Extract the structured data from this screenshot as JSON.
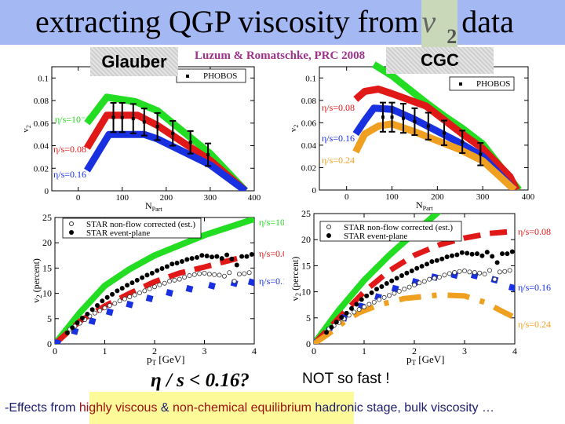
{
  "title": {
    "text": "extracting QGP viscosity from",
    "v": "v",
    "sub": "2",
    "tail": "data"
  },
  "tags": {
    "glauber": "Glauber",
    "cgc": "CGC"
  },
  "citation": "Luzum & Romatschke, PRC 2008",
  "claim": "η / s < 0.16?",
  "rebuttal": "NOT so fast !",
  "footnote": {
    "prefix": "-Effects from ",
    "r1": "highly viscous",
    "mid": " & ",
    "r2": "non-chemical equilibrium",
    "suffix": " hadronic stage, bulk viscosity …"
  },
  "colors": {
    "titlebar": "#a4b8f4",
    "green": "#22dd22",
    "red": "#e01818",
    "blue": "#1830e0",
    "orange": "#f0a020",
    "citation": "#a0308a"
  },
  "chart_data": [
    {
      "type": "line",
      "panel": "Glauber",
      "xlabel": {
        "main": "N",
        "sub": "Part"
      },
      "ylabel": {
        "main": "v",
        "sub": "2"
      },
      "xlim": [
        -60,
        400
      ],
      "ylim": [
        0,
        0.11
      ],
      "xticks": [
        "0",
        "100",
        "200",
        "300",
        "400"
      ],
      "yticks": [
        "0",
        "0.02",
        "0.04",
        "0.06",
        "0.08",
        "0.1"
      ],
      "legend": [
        "PHOBOS"
      ],
      "series": [
        {
          "name": "η/s=10⁻⁴",
          "color": "#22dd22",
          "style": "band",
          "points": [
            [
              20,
              0.06
            ],
            [
              65,
              0.083
            ],
            [
              130,
              0.079
            ],
            [
              180,
              0.071
            ],
            [
              300,
              0.033
            ],
            [
              380,
              0
            ]
          ]
        },
        {
          "name": "η/s=0.08",
          "color": "#e01818",
          "style": "band",
          "points": [
            [
              20,
              0.038
            ],
            [
              65,
              0.067
            ],
            [
              135,
              0.067
            ],
            [
              180,
              0.058
            ],
            [
              300,
              0.027
            ],
            [
              380,
              0
            ]
          ]
        },
        {
          "name": "η/s=0.16",
          "color": "#1830e0",
          "style": "band",
          "points": [
            [
              20,
              0.018
            ],
            [
              70,
              0.05
            ],
            [
              150,
              0.05
            ],
            [
              180,
              0.046
            ],
            [
              300,
              0.023
            ],
            [
              380,
              0
            ]
          ]
        }
      ],
      "data": {
        "name": "PHOBOS",
        "points": [
          [
            80,
            0.065,
            0.013
          ],
          [
            100,
            0.065,
            0.013
          ],
          [
            125,
            0.064,
            0.013
          ],
          [
            150,
            0.061,
            0.012
          ],
          [
            180,
            0.057,
            0.012
          ],
          [
            215,
            0.051,
            0.011
          ],
          [
            255,
            0.043,
            0.01
          ],
          [
            295,
            0.032,
            0.01
          ]
        ]
      }
    },
    {
      "type": "line",
      "panel": "CGC",
      "xlabel": {
        "main": "N",
        "sub": "Part"
      },
      "ylabel": {
        "main": "v",
        "sub": "2"
      },
      "xlim": [
        -60,
        400
      ],
      "ylim": [
        0,
        0.11
      ],
      "xticks": [
        "0",
        "100",
        "200",
        "300",
        "400"
      ],
      "yticks": [
        "0",
        "0.02",
        "0.04",
        "0.06",
        "0.08",
        "0.1"
      ],
      "legend": [
        "PHOBOS"
      ],
      "series": [
        {
          "color": "#22dd22",
          "style": "band",
          "points": [
            [
              60,
              0.112
            ],
            [
              100,
              0.102
            ],
            [
              175,
              0.078
            ],
            [
              215,
              0.066
            ],
            [
              255,
              0.055
            ],
            [
              300,
              0.041
            ],
            [
              380,
              0
            ]
          ]
        },
        {
          "name": "η/s=0.08",
          "color": "#e01818",
          "style": "band",
          "points": [
            [
              20,
              0.081
            ],
            [
              40,
              0.088
            ],
            [
              70,
              0.09
            ],
            [
              100,
              0.086
            ],
            [
              175,
              0.075
            ],
            [
              255,
              0.05
            ],
            [
              300,
              0.037
            ],
            [
              360,
              0.012
            ],
            [
              375,
              0
            ]
          ]
        },
        {
          "name": "η/s=0.16",
          "color": "#1830e0",
          "style": "band",
          "points": [
            [
              20,
              0.05
            ],
            [
              40,
              0.062
            ],
            [
              60,
              0.073
            ],
            [
              100,
              0.072
            ],
            [
              150,
              0.063
            ],
            [
              250,
              0.042
            ],
            [
              300,
              0.03
            ],
            [
              370,
              0
            ]
          ]
        },
        {
          "name": "η/s=0.24",
          "color": "#f0a020",
          "style": "band",
          "points": [
            [
              20,
              0.034
            ],
            [
              40,
              0.05
            ],
            [
              70,
              0.057
            ],
            [
              100,
              0.059
            ],
            [
              150,
              0.052
            ],
            [
              250,
              0.036
            ],
            [
              300,
              0.026
            ],
            [
              370,
              0
            ]
          ]
        }
      ],
      "data": {
        "name": "PHOBOS",
        "points": [
          [
            80,
            0.065,
            0.013
          ],
          [
            100,
            0.065,
            0.013
          ],
          [
            125,
            0.064,
            0.013
          ],
          [
            150,
            0.061,
            0.012
          ],
          [
            180,
            0.057,
            0.012
          ],
          [
            215,
            0.051,
            0.011
          ],
          [
            255,
            0.043,
            0.01
          ],
          [
            295,
            0.032,
            0.01
          ]
        ]
      }
    },
    {
      "type": "line",
      "panel": "Glauber",
      "xlabel": {
        "main": "p",
        "sub": "T",
        "suffix": " [GeV]"
      },
      "ylabel": {
        "main": "v",
        "sub": "2",
        "suffix": " (percent)"
      },
      "xlim": [
        0,
        4
      ],
      "ylim": [
        0,
        25
      ],
      "xticks": [
        "0",
        "1",
        "2",
        "3",
        "4"
      ],
      "yticks": [
        "0",
        "5",
        "10",
        "15",
        "20",
        "25"
      ],
      "legend": [
        "STAR non-flow corrected (est.)",
        "STAR event-plane"
      ],
      "series": [
        {
          "name": "η/s=10⁻⁴",
          "color": "#22dd22",
          "style": "band",
          "points": [
            [
              0,
              0
            ],
            [
              0.5,
              6.2
            ],
            [
              1,
              11.5
            ],
            [
              1.5,
              14.8
            ],
            [
              2,
              17.5
            ],
            [
              3,
              21.5
            ],
            [
              4,
              24.7
            ]
          ]
        },
        {
          "name": "η/s=0.08",
          "color": "#e01818",
          "style": "dashed",
          "points": [
            [
              0,
              0
            ],
            [
              0.5,
              4.5
            ],
            [
              1,
              7.5
            ],
            [
              1.5,
              10
            ],
            [
              2,
              12.3
            ],
            [
              2.5,
              14
            ],
            [
              3,
              15.2
            ],
            [
              3.5,
              16.5
            ],
            [
              3.7,
              17
            ]
          ]
        },
        {
          "name": "η/s=0.16",
          "color": "#1830e0",
          "style": "markers",
          "points": [
            [
              0.05,
              0.2
            ],
            [
              0.4,
              2.5
            ],
            [
              0.75,
              4.5
            ],
            [
              1.1,
              6.3
            ],
            [
              1.5,
              7.8
            ],
            [
              1.9,
              9
            ],
            [
              2.3,
              10.1
            ],
            [
              2.7,
              10.9
            ],
            [
              3.15,
              11.5
            ],
            [
              3.6,
              12
            ],
            [
              3.95,
              12.2
            ]
          ]
        }
      ]
    },
    {
      "type": "line",
      "panel": "CGC",
      "xlabel": {
        "main": "p",
        "sub": "T",
        "suffix": " [GeV]"
      },
      "ylabel": {
        "main": "v",
        "sub": "2",
        "suffix": " (percent)"
      },
      "xlim": [
        0,
        4
      ],
      "ylim": [
        0,
        25
      ],
      "xticks": [
        "0",
        "1",
        "2",
        "3",
        "4"
      ],
      "yticks": [
        "0",
        "5",
        "10",
        "15",
        "20",
        "25"
      ],
      "legend": [
        "STAR non-flow corrected (est.)",
        "STAR event-plane"
      ],
      "series": [
        {
          "color": "#22dd22",
          "style": "band",
          "points": [
            [
              0,
              0
            ],
            [
              0.5,
              6.5
            ],
            [
              1,
              12.2
            ],
            [
              1.5,
              17
            ],
            [
              2,
              21.3
            ],
            [
              2.5,
              25.5
            ]
          ]
        },
        {
          "name": "η/s=0.08",
          "color": "#e01818",
          "style": "dashed",
          "points": [
            [
              0,
              0
            ],
            [
              0.5,
              5
            ],
            [
              1,
              10
            ],
            [
              1.5,
              14
            ],
            [
              2,
              17
            ],
            [
              2.5,
              19
            ],
            [
              3,
              20.3
            ],
            [
              3.5,
              21.2
            ],
            [
              4,
              21.6
            ]
          ]
        },
        {
          "name": "η/s=0.16",
          "color": "#1830e0",
          "style": "markers",
          "points": [
            [
              0.05,
              0.2
            ],
            [
              0.3,
              2.5
            ],
            [
              0.6,
              5
            ],
            [
              0.95,
              7.2
            ],
            [
              1.28,
              9
            ],
            [
              1.62,
              10.6
            ],
            [
              2.02,
              11.9
            ],
            [
              2.4,
              12.8
            ],
            [
              2.8,
              13.2
            ],
            [
              3.2,
              13.1
            ],
            [
              3.6,
              12.3
            ],
            [
              3.95,
              10.8
            ]
          ]
        },
        {
          "name": "η/s=0.24",
          "color": "#f0a020",
          "style": "dashdot",
          "points": [
            [
              0,
              0
            ],
            [
              0.3,
              2
            ],
            [
              0.6,
              4.2
            ],
            [
              0.9,
              6
            ],
            [
              1.3,
              7.5
            ],
            [
              1.8,
              8.7
            ],
            [
              2.5,
              9.4
            ],
            [
              3,
              9.2
            ],
            [
              3.4,
              8
            ],
            [
              3.8,
              6
            ],
            [
              3.95,
              5.3
            ]
          ]
        }
      ]
    }
  ],
  "star": {
    "event_plane": [
      [
        0.25,
        2.2
      ],
      [
        0.35,
        3.2
      ],
      [
        0.45,
        4.2
      ],
      [
        0.55,
        5.1
      ],
      [
        0.65,
        5.9
      ],
      [
        0.75,
        6.8
      ],
      [
        0.85,
        7.6
      ],
      [
        0.95,
        8.5
      ],
      [
        1.05,
        9.2
      ],
      [
        1.15,
        9.8
      ],
      [
        1.25,
        10.5
      ],
      [
        1.35,
        11
      ],
      [
        1.45,
        11.6
      ],
      [
        1.55,
        12.1
      ],
      [
        1.65,
        12.6
      ],
      [
        1.75,
        13.1
      ],
      [
        1.85,
        13.6
      ],
      [
        1.95,
        14
      ],
      [
        2.05,
        14.5
      ],
      [
        2.15,
        14.9
      ],
      [
        2.25,
        15.3
      ],
      [
        2.35,
        15.8
      ],
      [
        2.45,
        16
      ],
      [
        2.55,
        16.3
      ],
      [
        2.65,
        16.7
      ],
      [
        2.75,
        16.9
      ],
      [
        2.85,
        17.1
      ],
      [
        2.95,
        17.5
      ],
      [
        3.05,
        17.4
      ],
      [
        3.15,
        17.2
      ],
      [
        3.25,
        17.3
      ],
      [
        3.35,
        16.9
      ],
      [
        3.45,
        17.6
      ],
      [
        3.55,
        16.8
      ],
      [
        3.65,
        15.6
      ],
      [
        3.75,
        17.3
      ],
      [
        3.85,
        17.3
      ],
      [
        3.95,
        17.7
      ]
    ],
    "non_flow": [
      [
        0.3,
        2.9
      ],
      [
        0.4,
        3.5
      ],
      [
        0.5,
        4.1
      ],
      [
        0.6,
        4.8
      ],
      [
        0.7,
        5.5
      ],
      [
        0.8,
        6.1
      ],
      [
        0.9,
        6.6
      ],
      [
        1.0,
        7.1
      ],
      [
        1.1,
        7.6
      ],
      [
        1.2,
        8
      ],
      [
        1.3,
        8.5
      ],
      [
        1.4,
        8.9
      ],
      [
        1.5,
        9.3
      ],
      [
        1.6,
        9.7
      ],
      [
        1.7,
        10.1
      ],
      [
        1.8,
        10.5
      ],
      [
        1.9,
        10.9
      ],
      [
        2.0,
        11.3
      ],
      [
        2.1,
        11.7
      ],
      [
        2.2,
        12
      ],
      [
        2.3,
        12.4
      ],
      [
        2.4,
        12.6
      ],
      [
        2.5,
        12.8
      ],
      [
        2.6,
        13.2
      ],
      [
        2.7,
        13.5
      ],
      [
        2.8,
        13.7
      ],
      [
        2.9,
        13.9
      ],
      [
        3.0,
        14
      ],
      [
        3.1,
        13.8
      ],
      [
        3.2,
        13.7
      ],
      [
        3.3,
        13.6
      ],
      [
        3.4,
        13.4
      ],
      [
        3.5,
        14.1
      ],
      [
        3.6,
        12.4
      ],
      [
        3.7,
        13.8
      ],
      [
        3.8,
        13.9
      ],
      [
        3.9,
        14.1
      ]
    ]
  }
}
